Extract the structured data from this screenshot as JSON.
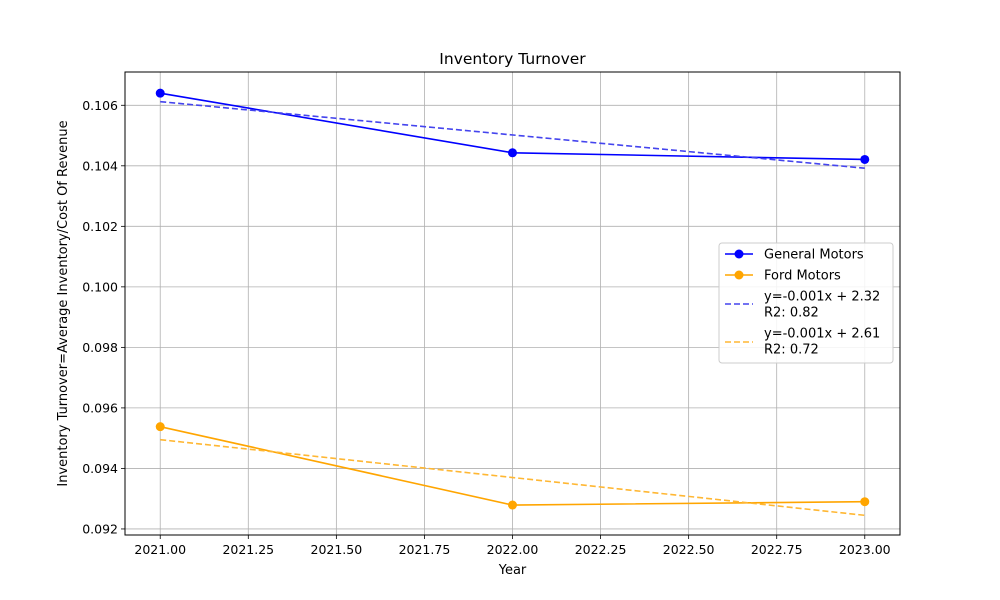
{
  "chart_data": {
    "type": "line",
    "title": "Inventory Turnover",
    "xlabel": "Year",
    "ylabel": "Inventory Turnover=Average Inventory/Cost Of Revenue",
    "xlim": [
      2020.9,
      2023.1
    ],
    "ylim": [
      0.0918,
      0.1071
    ],
    "x_ticks": [
      2021.0,
      2021.25,
      2021.5,
      2021.75,
      2022.0,
      2022.25,
      2022.5,
      2022.75,
      2023.0
    ],
    "x_tick_labels": [
      "2021.00",
      "2021.25",
      "2021.50",
      "2021.75",
      "2022.00",
      "2022.25",
      "2022.50",
      "2022.75",
      "2023.00"
    ],
    "y_ticks": [
      0.092,
      0.094,
      0.096,
      0.098,
      0.1,
      0.102,
      0.104,
      0.106
    ],
    "y_tick_labels": [
      "0.092",
      "0.094",
      "0.096",
      "0.098",
      "0.100",
      "0.102",
      "0.104",
      "0.106"
    ],
    "grid": true,
    "legend_position": "center-right",
    "series": [
      {
        "name": "General Motors",
        "style": "solid-markers",
        "color": "#0000ff",
        "x": [
          2021,
          2022,
          2023
        ],
        "y": [
          0.1064,
          0.10443,
          0.10421
        ]
      },
      {
        "name": "Ford Motors",
        "style": "solid-markers",
        "color": "#ffa500",
        "x": [
          2021,
          2022,
          2023
        ],
        "y": [
          0.09538,
          0.09279,
          0.0929
        ]
      },
      {
        "name": "y=-0.001x + 2.32\nR2: 0.82",
        "style": "dashed",
        "color": "#4444ee",
        "x": [
          2021,
          2023
        ],
        "y": [
          0.10612,
          0.10392
        ]
      },
      {
        "name": "y=-0.001x + 2.61\nR2: 0.72",
        "style": "dashed",
        "color": "#ffb733",
        "x": [
          2021,
          2023
        ],
        "y": [
          0.09495,
          0.09245
        ]
      }
    ]
  }
}
